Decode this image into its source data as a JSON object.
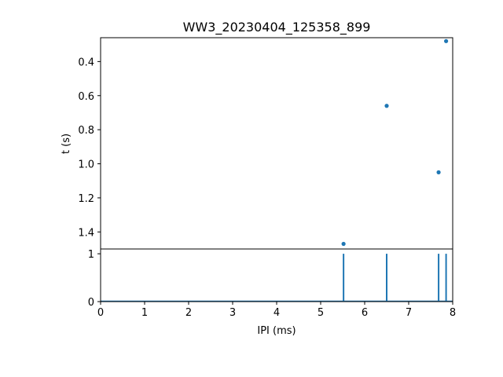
{
  "chart_data": [
    {
      "type": "scatter",
      "title": "WW3_20230404_125358_899",
      "xlabel": "",
      "ylabel": "t (s)",
      "xlim": [
        0,
        8
      ],
      "ylim": [
        1.5,
        0.26
      ],
      "y_inverted": true,
      "yticks": [
        0.4,
        0.6,
        0.8,
        1.0,
        1.2,
        1.4
      ],
      "ytick_labels": [
        "0.4",
        "0.6",
        "0.8",
        "1.0",
        "1.2",
        "1.4"
      ],
      "color": "#1f77b4",
      "points": [
        {
          "x": 7.85,
          "y": 0.28
        },
        {
          "x": 6.5,
          "y": 0.66
        },
        {
          "x": 7.68,
          "y": 1.05
        },
        {
          "x": 5.52,
          "y": 1.47
        }
      ]
    },
    {
      "type": "line",
      "xlabel": "IPI (ms)",
      "ylabel": "",
      "xlim": [
        0,
        8
      ],
      "ylim": [
        0,
        1.1
      ],
      "xticks": [
        0,
        1,
        2,
        3,
        4,
        5,
        6,
        7,
        8
      ],
      "xtick_labels": [
        "0",
        "1",
        "2",
        "3",
        "4",
        "5",
        "6",
        "7",
        "8"
      ],
      "yticks": [
        0,
        1
      ],
      "ytick_labels": [
        "0",
        "1"
      ],
      "color": "#1f77b4",
      "spikes": [
        {
          "x": 5.52,
          "y": 1
        },
        {
          "x": 6.5,
          "y": 1
        },
        {
          "x": 7.68,
          "y": 1
        },
        {
          "x": 7.85,
          "y": 1
        }
      ]
    }
  ]
}
